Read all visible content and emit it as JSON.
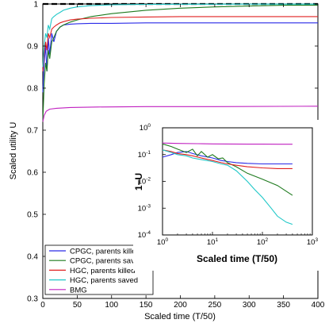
{
  "chart_data": [
    {
      "type": "line",
      "xlabel": "Scaled time (T/50)",
      "ylabel": "Scaled utility U",
      "xlim": [
        0,
        400
      ],
      "ylim": [
        0.3,
        1.0
      ],
      "xticks": [
        "0",
        "50",
        "100",
        "150",
        "200",
        "250",
        "300",
        "350",
        "400"
      ],
      "yticks": [
        "0.3",
        "0.4",
        "0.5",
        "0.6",
        "0.7",
        "0.8",
        "0.9",
        "1"
      ],
      "grid": false,
      "legend_position": "bottom-left",
      "reference_line": {
        "y": 1.0,
        "style": "dashed",
        "color": "#000000"
      },
      "series": [
        {
          "name": "CPGC, parents killed",
          "color": "#2a2ae8",
          "x": [
            0,
            2,
            4,
            6,
            8,
            10,
            13,
            16,
            20,
            25,
            30,
            40,
            50,
            70,
            100,
            150,
            200,
            300,
            400
          ],
          "y": [
            0.79,
            0.86,
            0.9,
            0.84,
            0.92,
            0.88,
            0.93,
            0.91,
            0.935,
            0.945,
            0.95,
            0.952,
            0.953,
            0.954,
            0.954,
            0.955,
            0.955,
            0.955,
            0.955
          ]
        },
        {
          "name": "CPGC, parents saved",
          "color": "#1e7a1e",
          "x": [
            0,
            2,
            4,
            6,
            8,
            10,
            13,
            16,
            20,
            25,
            30,
            40,
            50,
            70,
            100,
            150,
            200,
            250,
            300,
            350,
            400
          ],
          "y": [
            0.72,
            0.81,
            0.86,
            0.84,
            0.89,
            0.87,
            0.91,
            0.92,
            0.935,
            0.945,
            0.95,
            0.957,
            0.962,
            0.97,
            0.977,
            0.985,
            0.99,
            0.993,
            0.995,
            0.997,
            0.997
          ]
        },
        {
          "name": "HGC, parents killed",
          "color": "#e02020",
          "x": [
            0,
            2,
            4,
            6,
            8,
            10,
            13,
            16,
            20,
            25,
            30,
            40,
            50,
            70,
            100,
            150,
            200,
            300,
            400
          ],
          "y": [
            0.84,
            0.88,
            0.91,
            0.89,
            0.93,
            0.92,
            0.94,
            0.945,
            0.95,
            0.955,
            0.958,
            0.962,
            0.964,
            0.966,
            0.968,
            0.969,
            0.97,
            0.97,
            0.97
          ]
        },
        {
          "name": "HGC, parents saved",
          "color": "#20c8c8",
          "x": [
            0,
            2,
            4,
            6,
            8,
            10,
            13,
            16,
            20,
            25,
            30,
            40,
            50,
            70,
            100,
            150,
            200,
            300,
            400
          ],
          "y": [
            0.85,
            0.9,
            0.93,
            0.92,
            0.95,
            0.94,
            0.965,
            0.97,
            0.975,
            0.98,
            0.985,
            0.99,
            0.993,
            0.996,
            0.998,
            0.999,
            0.9995,
            0.9997,
            0.9997
          ]
        },
        {
          "name": "BMG",
          "color": "#c020c0",
          "x": [
            0,
            2,
            5,
            10,
            20,
            40,
            80,
            150,
            250,
            400
          ],
          "y": [
            0.72,
            0.735,
            0.745,
            0.75,
            0.752,
            0.754,
            0.755,
            0.756,
            0.756,
            0.757
          ]
        }
      ]
    },
    {
      "type": "line",
      "xlabel": "Scaled time (T/50)",
      "ylabel": "1−U",
      "xscale": "log",
      "yscale": "log",
      "xlim": [
        1,
        1000
      ],
      "ylim": [
        0.0001,
        1
      ],
      "xticks": [
        {
          "base": "10",
          "exp": "0"
        },
        {
          "base": "10",
          "exp": "1"
        },
        {
          "base": "10",
          "exp": "2"
        },
        {
          "base": "10",
          "exp": "3"
        }
      ],
      "yticks": [
        {
          "base": "10",
          "exp": "0"
        },
        {
          "base": "10",
          "exp": "-1"
        },
        {
          "base": "10",
          "exp": "-2"
        },
        {
          "base": "10",
          "exp": "-3"
        },
        {
          "base": "10",
          "exp": "-4"
        }
      ],
      "series": [
        {
          "color": "#2a2ae8",
          "x": [
            1,
            1.5,
            2,
            3,
            4,
            6,
            10,
            15,
            20,
            30,
            50,
            100,
            200,
            400
          ],
          "y": [
            0.08,
            0.1,
            0.12,
            0.13,
            0.11,
            0.09,
            0.075,
            0.06,
            0.055,
            0.05,
            0.047,
            0.045,
            0.045,
            0.045
          ]
        },
        {
          "color": "#1e7a1e",
          "x": [
            1,
            1.5,
            2,
            3,
            4,
            5,
            6,
            8,
            10,
            13,
            16,
            20,
            30,
            50,
            100,
            200,
            400
          ],
          "y": [
            0.25,
            0.2,
            0.16,
            0.12,
            0.16,
            0.09,
            0.13,
            0.08,
            0.1,
            0.07,
            0.075,
            0.05,
            0.035,
            0.02,
            0.012,
            0.007,
            0.003
          ]
        },
        {
          "color": "#e02020",
          "x": [
            1,
            1.5,
            2,
            3,
            4,
            6,
            10,
            15,
            20,
            30,
            50,
            100,
            200,
            400
          ],
          "y": [
            0.15,
            0.13,
            0.11,
            0.1,
            0.09,
            0.075,
            0.06,
            0.05,
            0.045,
            0.04,
            0.035,
            0.032,
            0.03,
            0.03
          ]
        },
        {
          "color": "#20c8c8",
          "x": [
            1,
            1.5,
            2,
            3,
            4,
            6,
            10,
            15,
            20,
            30,
            50,
            70,
            100,
            150,
            200,
            300,
            400
          ],
          "y": [
            0.15,
            0.12,
            0.1,
            0.09,
            0.075,
            0.065,
            0.055,
            0.045,
            0.04,
            0.025,
            0.01,
            0.005,
            0.0025,
            0.001,
            0.0005,
            0.0003,
            0.00025
          ]
        },
        {
          "color": "#c020c0",
          "x": [
            1,
            2,
            5,
            10,
            20,
            50,
            100,
            200,
            400
          ],
          "y": [
            0.27,
            0.26,
            0.255,
            0.25,
            0.248,
            0.246,
            0.245,
            0.244,
            0.243
          ]
        }
      ]
    }
  ]
}
